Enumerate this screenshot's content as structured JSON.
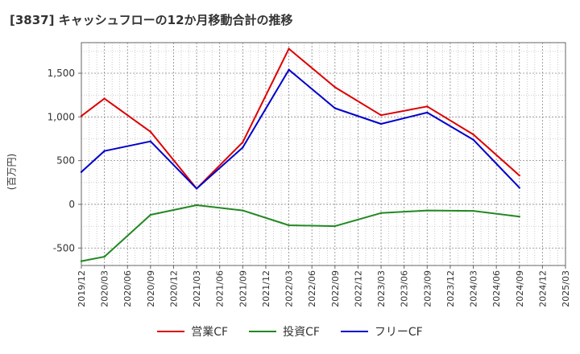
{
  "chart_data": {
    "type": "line",
    "title": "[3837]  キャッシュフローの12か月移動合計の推移",
    "ylabel": "(百万円)",
    "xlabel": "",
    "categories": [
      "2019/12",
      "2020/03",
      "2020/06",
      "2020/09",
      "2020/12",
      "2021/03",
      "2021/06",
      "2021/09",
      "2021/12",
      "2022/03",
      "2022/06",
      "2022/09",
      "2022/12",
      "2023/03",
      "2023/06",
      "2023/09",
      "2023/12",
      "2024/03",
      "2024/06",
      "2024/09",
      "2024/12",
      "2025/03"
    ],
    "ylim": [
      -700,
      1850
    ],
    "yticks": [
      -500,
      0,
      500,
      1000,
      1500
    ],
    "ytick_labels": [
      "-500",
      "0",
      "500",
      "1,000",
      "1,500"
    ],
    "grid": true,
    "legend_position": "bottom",
    "series": [
      {
        "name": "営業CF",
        "color": "#dd0000",
        "values": [
          1010,
          1210,
          null,
          830,
          null,
          180,
          null,
          710,
          null,
          1780,
          null,
          1340,
          null,
          1020,
          null,
          1120,
          null,
          800,
          null,
          330,
          null,
          null
        ]
      },
      {
        "name": "投資CF",
        "color": "#228822",
        "values": [
          -650,
          -600,
          null,
          -120,
          null,
          -10,
          null,
          -70,
          null,
          -240,
          null,
          -250,
          null,
          -100,
          null,
          -70,
          null,
          -75,
          null,
          -140,
          null,
          null
        ]
      },
      {
        "name": "フリーCF",
        "color": "#0000cc",
        "values": [
          370,
          610,
          null,
          720,
          null,
          180,
          null,
          650,
          null,
          1540,
          null,
          1100,
          null,
          920,
          null,
          1050,
          null,
          740,
          null,
          190,
          null,
          null
        ]
      }
    ]
  }
}
